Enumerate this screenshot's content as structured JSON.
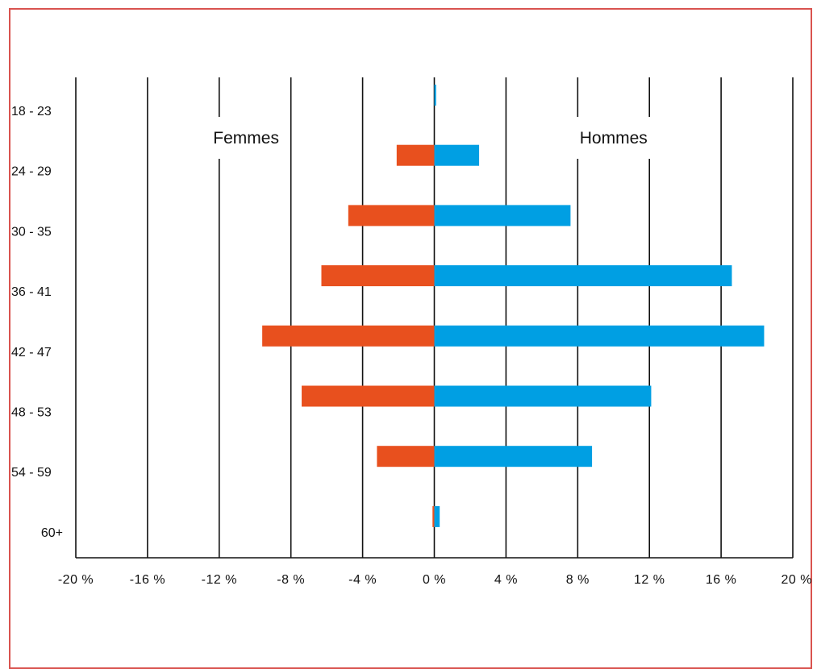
{
  "chart_data": {
    "type": "bar",
    "orientation": "horizontal",
    "layout": "population-pyramid",
    "categories": [
      "18 - 23",
      "24 - 29",
      "30 - 35",
      "36 - 41",
      "42 - 47",
      "48 - 53",
      "54 - 59",
      "60+"
    ],
    "series": [
      {
        "name": "Femmes",
        "color": "#e8501e",
        "values": [
          0,
          -2.1,
          -4.8,
          -6.3,
          -9.6,
          -7.4,
          -3.2,
          -0.1
        ]
      },
      {
        "name": "Hommes",
        "color": "#009fe3",
        "values": [
          0.1,
          2.5,
          7.6,
          16.6,
          18.4,
          12.1,
          8.8,
          0.3
        ]
      }
    ],
    "x_ticks": [
      {
        "value": -20,
        "label": "-20 %"
      },
      {
        "value": -16,
        "label": "-16 %"
      },
      {
        "value": -12,
        "label": "-12 %"
      },
      {
        "value": -8,
        "label": "-8 %"
      },
      {
        "value": -4,
        "label": "-4 %"
      },
      {
        "value": 0,
        "label": "0 %"
      },
      {
        "value": 4,
        "label": "4 %"
      },
      {
        "value": 8,
        "label": "8 %"
      },
      {
        "value": 12,
        "label": "12 %"
      },
      {
        "value": 16,
        "label": "16 %"
      },
      {
        "value": 20,
        "label": "20 %"
      }
    ],
    "xlim": [
      -20,
      20
    ],
    "grid": true,
    "legend_placement": "inside-top",
    "frame_color": "#d9534f"
  }
}
